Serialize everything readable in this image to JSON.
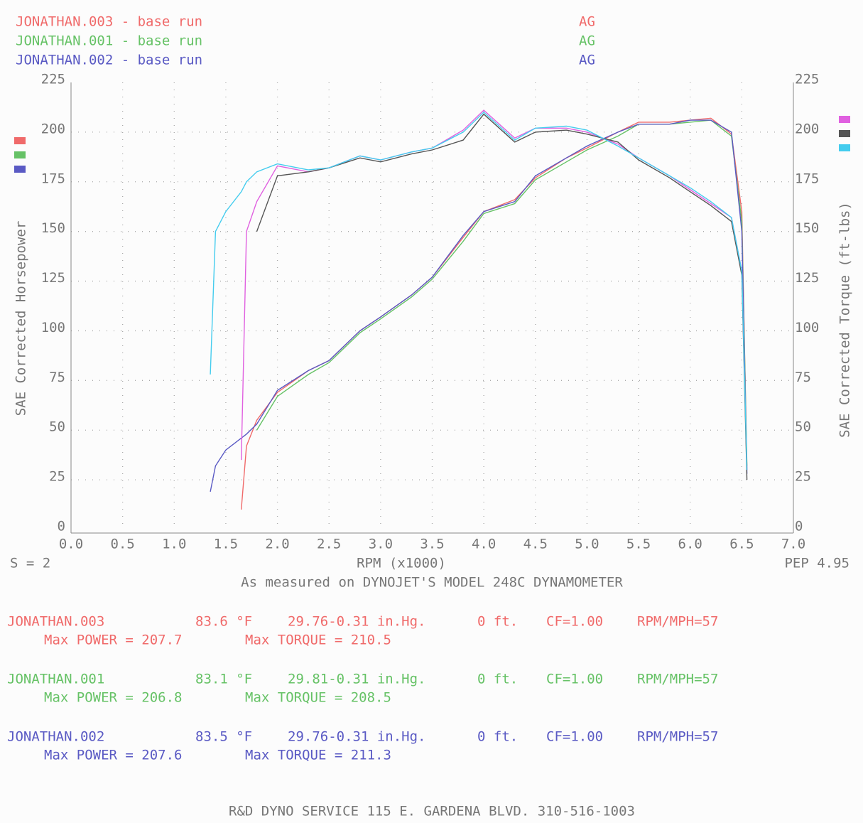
{
  "chart_data": {
    "type": "line",
    "x_label": "RPM (x1000)",
    "y_label": "SAE Corrected Horsepower",
    "y2_label": "SAE Corrected Torque (ft-lbs)",
    "note_left": "S = 2",
    "note_right": "PEP 4.95",
    "caption": "As measured on DYNOJET'S MODEL 248C DYNAMOMETER",
    "footer": "R&D DYNO SERVICE 115 E. GARDENA BLVD. 310-516-1003",
    "runs": [
      {
        "label": "JONATHAN.003 - base run",
        "tag": "AG",
        "color": "#f06a6a",
        "name": "JONATHAN.003",
        "temp": "83.6 °F",
        "pressure": "29.76-0.31 in.Hg.",
        "altitude": "0 ft.",
        "cf": "CF=1.00",
        "ratio": "RPM/MPH=57",
        "max_power": "Max POWER = 207.7",
        "max_torque": "Max TORQUE = 210.5"
      },
      {
        "label": "JONATHAN.001 - base run",
        "tag": "AG",
        "color": "#66c266",
        "name": "JONATHAN.001",
        "temp": "83.1 °F",
        "pressure": "29.81-0.31 in.Hg.",
        "altitude": "0 ft.",
        "cf": "CF=1.00",
        "ratio": "RPM/MPH=57",
        "max_power": "Max POWER = 206.8",
        "max_torque": "Max TORQUE = 208.5"
      },
      {
        "label": "JONATHAN.002 - base run",
        "tag": "AG",
        "color": "#5a5ac4",
        "name": "JONATHAN.002",
        "temp": "83.5 °F",
        "pressure": "29.76-0.31 in.Hg.",
        "altitude": "0 ft.",
        "cf": "CF=1.00",
        "ratio": "RPM/MPH=57",
        "max_power": "Max POWER = 207.6",
        "max_torque": "Max TORQUE = 211.3"
      }
    ],
    "x": [
      1.35,
      1.4,
      1.5,
      1.65,
      1.7,
      1.8,
      2.0,
      2.3,
      2.5,
      2.8,
      3.0,
      3.3,
      3.5,
      3.8,
      4.0,
      4.3,
      4.5,
      4.8,
      5.0,
      5.3,
      5.5,
      5.8,
      6.0,
      6.2,
      6.4,
      6.5,
      6.55
    ],
    "series": [
      {
        "color": "#f06a6a",
        "values": [
          null,
          null,
          null,
          10,
          42,
          55,
          69,
          80,
          85,
          100,
          107,
          118,
          127,
          147,
          160,
          166,
          177,
          187,
          192,
          200,
          205,
          205,
          206,
          207,
          199,
          160,
          30
        ]
      },
      {
        "color": "#66c266",
        "values": [
          null,
          null,
          null,
          null,
          null,
          50,
          67,
          78,
          84,
          99,
          106,
          117,
          126,
          145,
          159,
          164,
          176,
          185,
          191,
          198,
          204,
          204,
          205,
          206,
          198,
          155,
          32
        ]
      },
      {
        "color": "#5a5ac4",
        "values": [
          19,
          32,
          40,
          46,
          48,
          53,
          70,
          80,
          85,
          100,
          107,
          118,
          127,
          148,
          160,
          165,
          178,
          187,
          193,
          200,
          204,
          204,
          206,
          206,
          200,
          150,
          28
        ]
      },
      {
        "color": "#e060e0",
        "axis": "y2",
        "values": [
          null,
          null,
          null,
          35,
          150,
          165,
          183,
          180,
          182,
          188,
          186,
          190,
          192,
          201,
          211,
          197,
          202,
          202,
          200,
          194,
          187,
          178,
          171,
          164,
          157,
          130,
          30
        ]
      },
      {
        "color": "#555555",
        "axis": "y2",
        "values": [
          null,
          null,
          null,
          null,
          null,
          150,
          178,
          180,
          182,
          187,
          185,
          189,
          191,
          196,
          209,
          195,
          200,
          201,
          199,
          195,
          186,
          177,
          170,
          163,
          155,
          128,
          25
        ]
      },
      {
        "color": "#44ccee",
        "axis": "y2",
        "values": [
          78,
          150,
          160,
          170,
          175,
          180,
          184,
          181,
          182,
          188,
          186,
          190,
          192,
          200,
          210,
          196,
          202,
          203,
          201,
          193,
          187,
          178,
          172,
          165,
          157,
          130,
          30
        ]
      }
    ],
    "xlim": [
      0,
      7
    ],
    "xticks": [
      {
        "value": 0,
        "label": "0.0"
      },
      0.5,
      {
        "value": 1,
        "label": "1.0"
      },
      1.5,
      {
        "value": 2,
        "label": "2.0"
      },
      2.5,
      {
        "value": 3,
        "label": "3.0"
      },
      3.5,
      {
        "value": 4,
        "label": "4.0"
      },
      4.5,
      {
        "value": 5,
        "label": "5.0"
      },
      5.5,
      {
        "value": 6,
        "label": "6.0"
      },
      6.5,
      {
        "value": 7,
        "label": "7.0"
      }
    ],
    "ylim": [
      0,
      225
    ],
    "yticks": [
      0,
      25,
      50,
      75,
      100,
      125,
      150,
      175,
      200,
      225
    ],
    "y2lim": [
      0,
      225
    ],
    "y2ticks": [
      0,
      25,
      50,
      75,
      100,
      125,
      150,
      175,
      200,
      225
    ],
    "grid": true
  }
}
